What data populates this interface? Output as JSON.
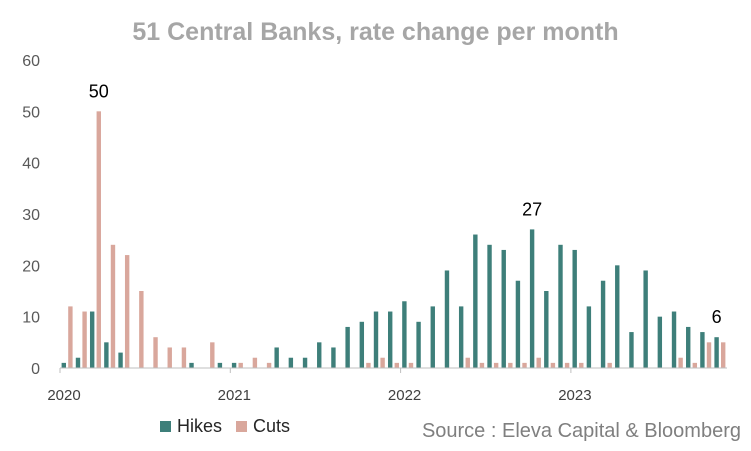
{
  "chart_data": {
    "type": "bar",
    "title": "51 Central Banks, rate change per month",
    "source": "Source : Eleva Capital & Bloomberg",
    "ylim": [
      0,
      60
    ],
    "y_ticks": [
      0,
      10,
      20,
      30,
      40,
      50,
      60
    ],
    "x_tick_labels": [
      {
        "label": "2020",
        "index": 0
      },
      {
        "label": "2021",
        "index": 12
      },
      {
        "label": "2022",
        "index": 24
      },
      {
        "label": "2023",
        "index": 36
      }
    ],
    "months": [
      "2020-01",
      "2020-02",
      "2020-03",
      "2020-04",
      "2020-05",
      "2020-06",
      "2020-07",
      "2020-08",
      "2020-09",
      "2020-10",
      "2020-11",
      "2020-12",
      "2021-01",
      "2021-02",
      "2021-03",
      "2021-04",
      "2021-05",
      "2021-06",
      "2021-07",
      "2021-08",
      "2021-09",
      "2021-10",
      "2021-11",
      "2021-12",
      "2022-01",
      "2022-02",
      "2022-03",
      "2022-04",
      "2022-05",
      "2022-06",
      "2022-07",
      "2022-08",
      "2022-09",
      "2022-10",
      "2022-11",
      "2022-12",
      "2023-01",
      "2023-02",
      "2023-03",
      "2023-04",
      "2023-05",
      "2023-06",
      "2023-07",
      "2023-08",
      "2023-09",
      "2023-10",
      "2023-11"
    ],
    "series": [
      {
        "name": "Hikes",
        "color": "#3e7f7a",
        "values": [
          1,
          2,
          11,
          5,
          3,
          0,
          0,
          0,
          0,
          1,
          0,
          1,
          1,
          0,
          0,
          4,
          2,
          2,
          5,
          4,
          8,
          9,
          11,
          11,
          13,
          9,
          12,
          19,
          12,
          26,
          24,
          23,
          17,
          27,
          15,
          24,
          23,
          12,
          17,
          20,
          7,
          19,
          10,
          11,
          8,
          7,
          6
        ]
      },
      {
        "name": "Cuts",
        "color": "#d9a79c",
        "values": [
          12,
          11,
          50,
          24,
          22,
          15,
          6,
          4,
          4,
          0,
          5,
          0,
          1,
          2,
          1,
          0,
          0,
          0,
          0,
          0,
          0,
          1,
          2,
          1,
          1,
          0,
          0,
          0,
          2,
          1,
          1,
          1,
          1,
          2,
          1,
          1,
          1,
          0,
          1,
          0,
          0,
          0,
          0,
          2,
          1,
          5,
          5
        ]
      }
    ],
    "annotations": [
      {
        "text": "50",
        "series": "Cuts",
        "index": 2
      },
      {
        "text": "27",
        "series": "Hikes",
        "index": 33
      },
      {
        "text": "6",
        "series": "Hikes",
        "index": 46
      }
    ],
    "legend_position": "bottom-left",
    "grid": false
  }
}
